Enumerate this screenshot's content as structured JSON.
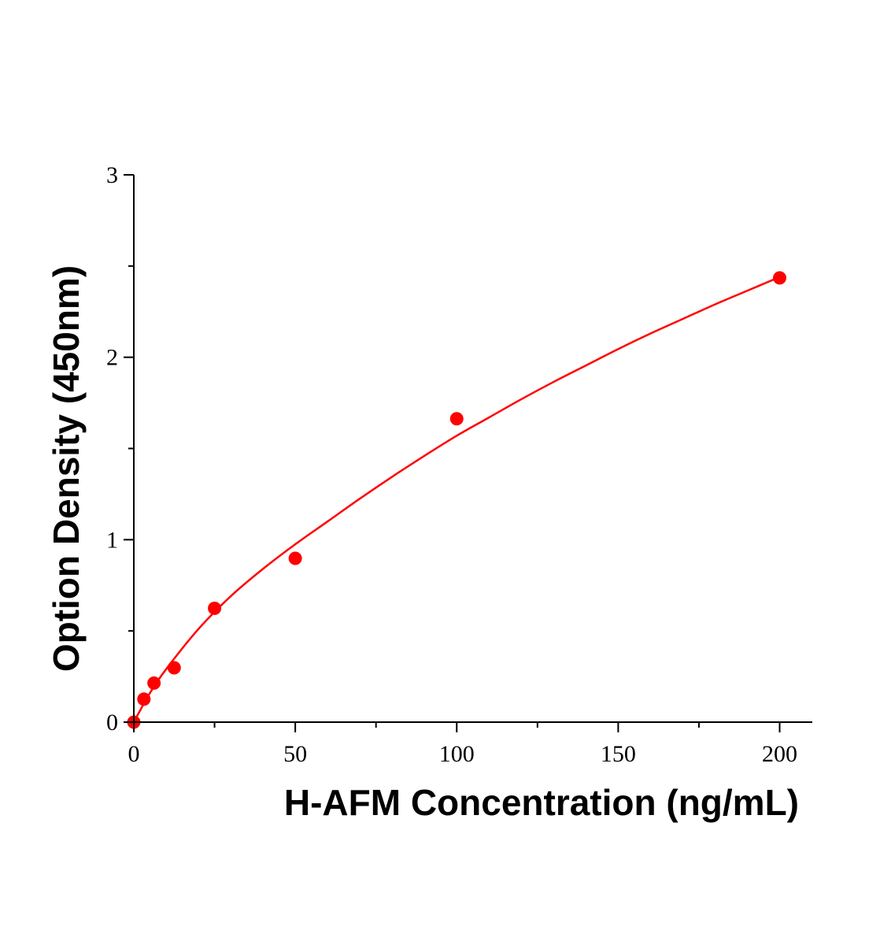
{
  "chart_data": {
    "type": "scatter",
    "xlabel": "H-AFM Concentration (ng/mL)",
    "ylabel": "Option Density (450nm)",
    "xlim": [
      0,
      210
    ],
    "ylim": [
      0,
      3
    ],
    "x_ticks": [
      0,
      50,
      100,
      150,
      200
    ],
    "x_tick_labels": [
      "0",
      "50",
      "100",
      "150",
      "200"
    ],
    "x_minor_ticks": [
      25,
      75,
      125,
      175
    ],
    "y_ticks": [
      0,
      1,
      2,
      3
    ],
    "y_tick_labels": [
      "0",
      "1",
      "2",
      "3"
    ],
    "y_minor_ticks": [
      0.5,
      1.5,
      2.5
    ],
    "grid": false,
    "series": [
      {
        "type": "scatter",
        "color": "#ff0000",
        "x": [
          0,
          3.125,
          6.25,
          12.5,
          25,
          50,
          100,
          200
        ],
        "y": [
          0.0,
          0.126,
          0.214,
          0.298,
          0.624,
          0.898,
          1.663,
          2.435
        ]
      }
    ],
    "fit": {
      "type": "line",
      "color": "#ff0000",
      "x": [
        0,
        5,
        10,
        20,
        30,
        40,
        50,
        60,
        70,
        80,
        90,
        100,
        110,
        120,
        130,
        140,
        150,
        160,
        170,
        180,
        190,
        200
      ],
      "y": [
        0.0,
        0.16,
        0.29,
        0.51,
        0.69,
        0.84,
        0.975,
        1.1,
        1.225,
        1.345,
        1.46,
        1.57,
        1.67,
        1.77,
        1.865,
        1.955,
        2.045,
        2.13,
        2.21,
        2.29,
        2.365,
        2.44
      ]
    }
  }
}
